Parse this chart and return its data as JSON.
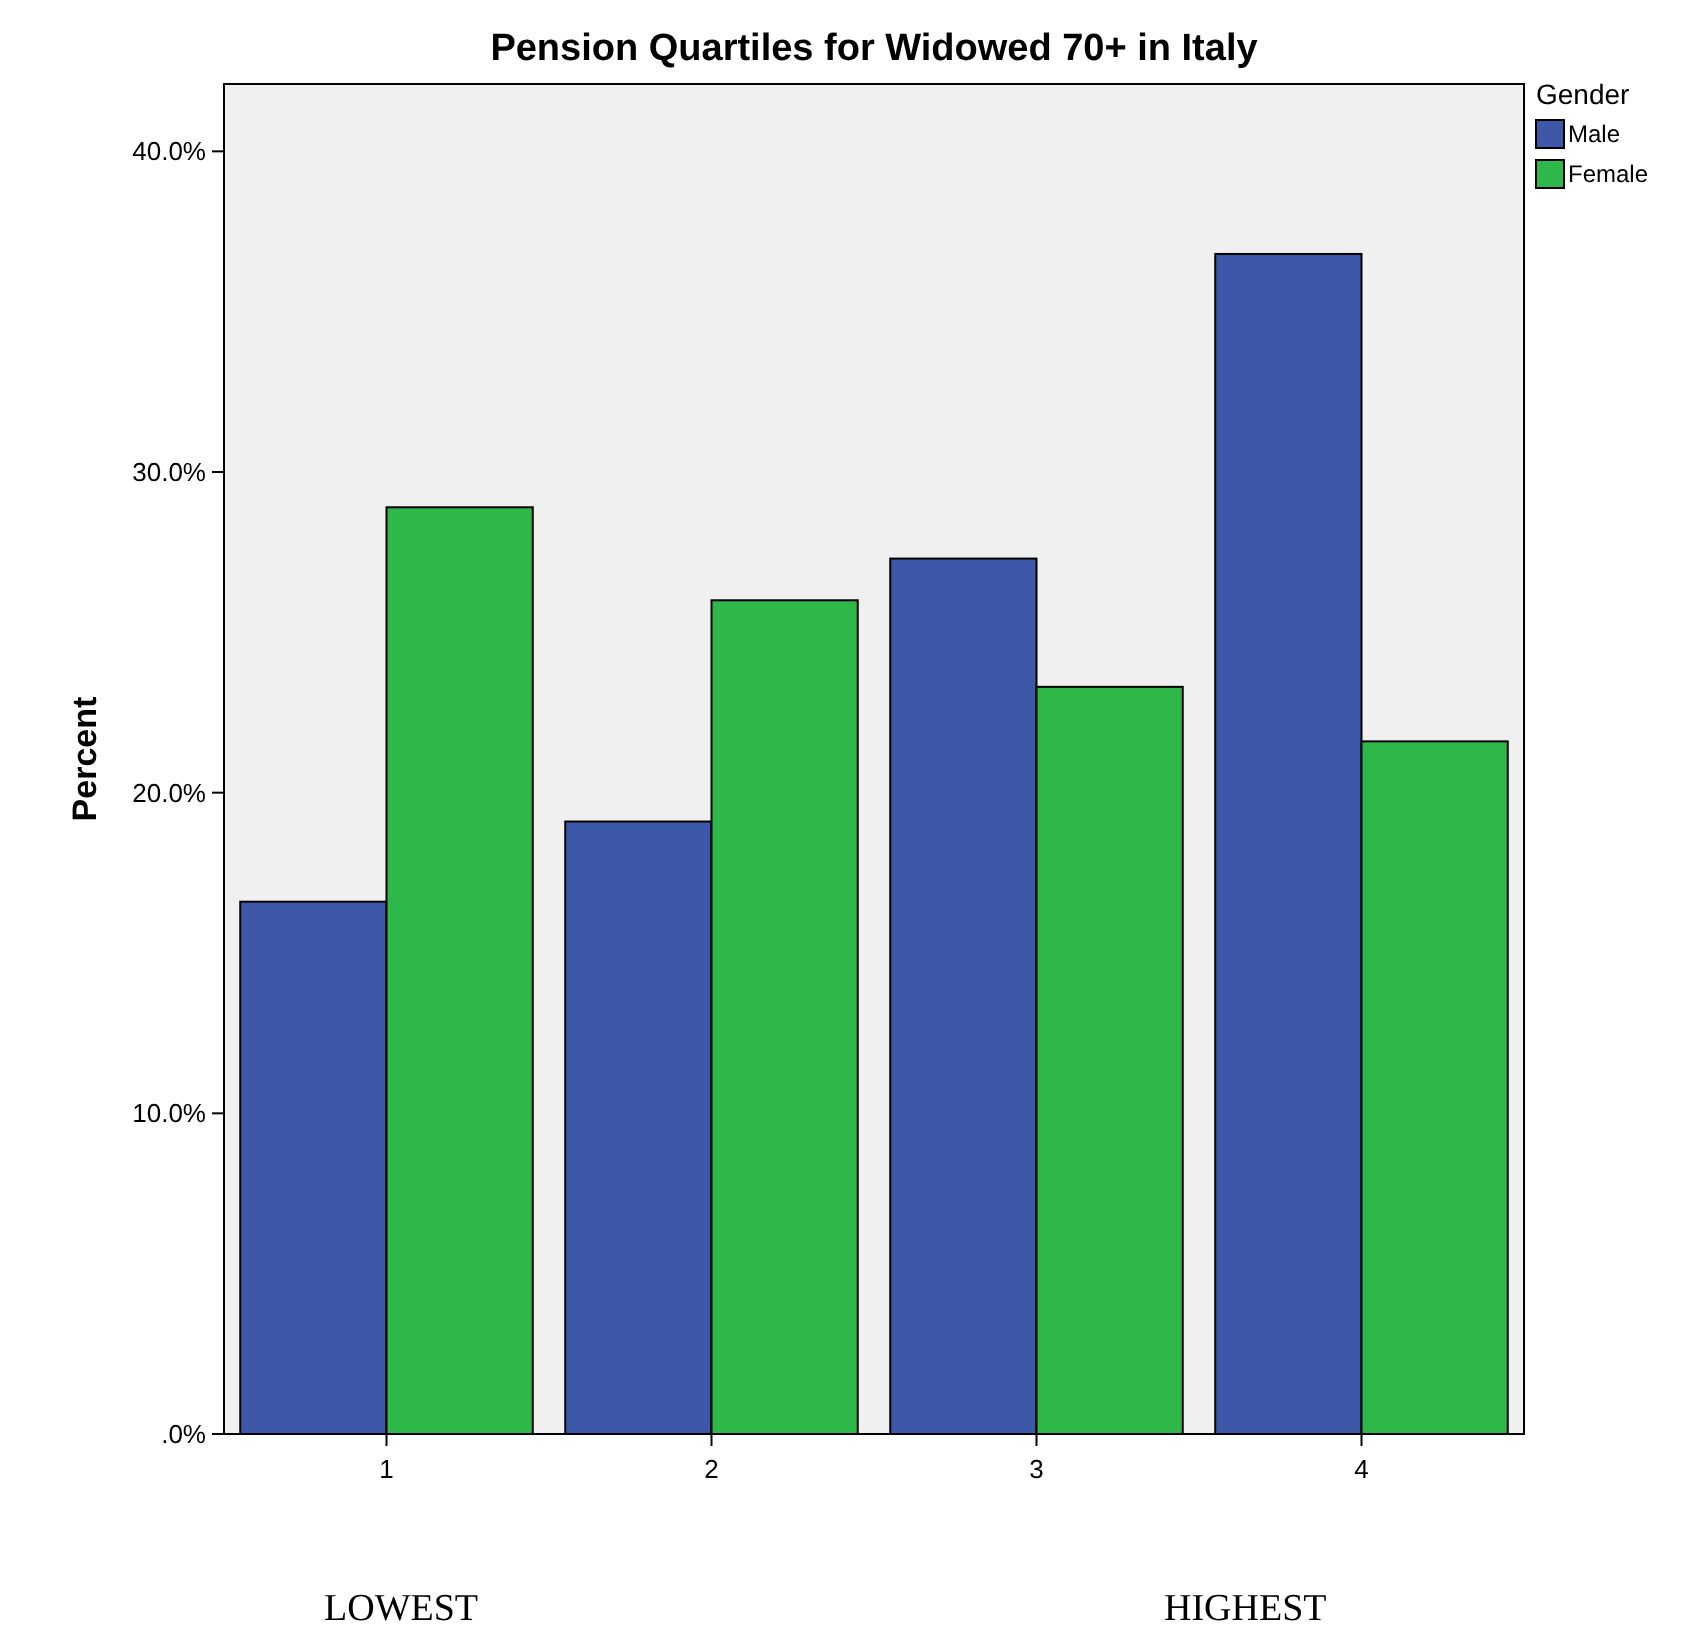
{
  "chart_data": {
    "type": "bar",
    "title": "Pension Quartiles for Widowed 70+ in Italy",
    "ylabel": "Percent",
    "legend_title": "Gender",
    "categories": [
      "1",
      "2",
      "3",
      "4"
    ],
    "series": [
      {
        "name": "Male",
        "color": "#3d58a8",
        "values": [
          16.6,
          19.1,
          27.3,
          36.8
        ]
      },
      {
        "name": "Female",
        "color": "#2fb84a",
        "values": [
          28.9,
          26.0,
          23.3,
          21.6
        ]
      }
    ],
    "ylim": [
      0,
      42.1
    ],
    "yticks": [
      {
        "value": 0,
        "label": ".0%"
      },
      {
        "value": 10,
        "label": "10.0%"
      },
      {
        "value": 20,
        "label": "20.0%"
      },
      {
        "value": 30,
        "label": "30.0%"
      },
      {
        "value": 40,
        "label": "40.0%"
      }
    ],
    "grid": false,
    "legend": "top right",
    "annotations": [
      "LOWEST",
      "HIGHEST"
    ]
  }
}
